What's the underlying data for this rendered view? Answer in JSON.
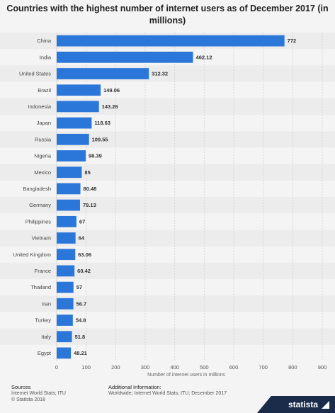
{
  "chart_data": {
    "type": "bar",
    "orientation": "horizontal",
    "title": "Countries with the highest number of internet users as of December 2017 (in millions)",
    "xlabel": "Number of internet users in millions",
    "categories": [
      "China",
      "India",
      "United States",
      "Brazil",
      "Indonesia",
      "Japan",
      "Russia",
      "Nigeria",
      "Mexico",
      "Bangladesh",
      "Germany",
      "Philippines",
      "Vietnam",
      "United Kingdom",
      "France",
      "Thailand",
      "Iran",
      "Turkey",
      "Italy",
      "Egypt"
    ],
    "values": [
      772,
      462.12,
      312.32,
      149.06,
      143.26,
      118.63,
      109.55,
      98.39,
      85,
      80.48,
      79.13,
      67,
      64,
      63.06,
      60.42,
      57,
      56.7,
      54.8,
      51.8,
      48.21
    ],
    "value_labels": [
      "772",
      "462.12",
      "312.32",
      "149.06",
      "143.26",
      "118.63",
      "109.55",
      "98.39",
      "85",
      "80.48",
      "79.13",
      "67",
      "64",
      "63.06",
      "60.42",
      "57",
      "56.7",
      "54.8",
      "51.8",
      "48.21"
    ],
    "xlim": [
      0,
      900
    ],
    "ticks": [
      "0",
      "100",
      "200",
      "300",
      "400",
      "500",
      "600",
      "700",
      "800",
      "900"
    ],
    "grid": true,
    "legend": "none",
    "bar_color": "#2b77d9"
  },
  "footer": {
    "sources_heading": "Sources",
    "sources_line1": "Internet World Stats; ITU",
    "sources_line2": "© Statista 2018",
    "additional_heading": "Additional Information:",
    "additional_line1": "Worldwide; Internet World Stats; ITU; December 2017"
  },
  "brand": {
    "name": "statista"
  }
}
